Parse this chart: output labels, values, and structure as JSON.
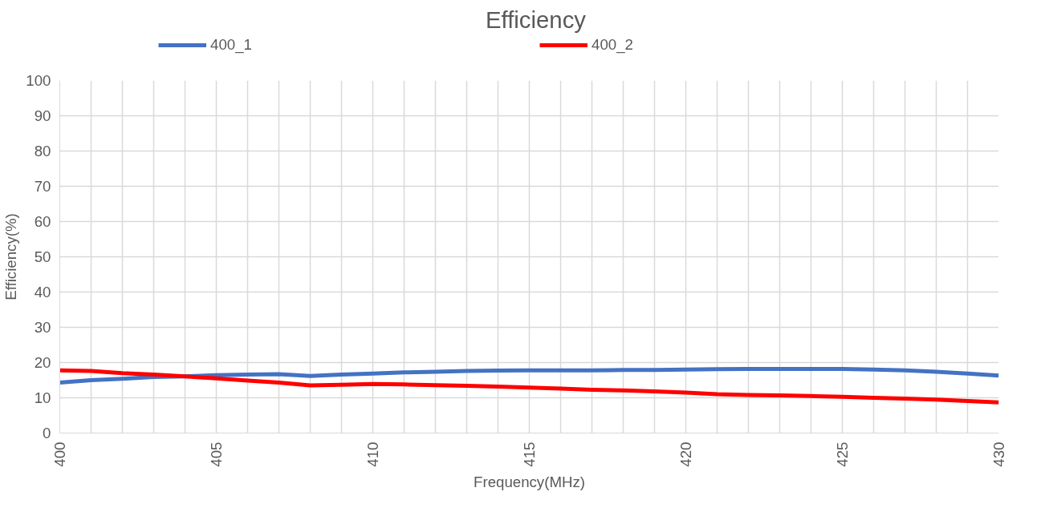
{
  "chart_data": {
    "type": "line",
    "title": "Efficiency",
    "xlabel": "Frequency(MHz)",
    "ylabel": "Efficiency(%)",
    "x": [
      400,
      401,
      402,
      403,
      404,
      405,
      406,
      407,
      408,
      409,
      410,
      411,
      412,
      413,
      414,
      415,
      416,
      417,
      418,
      419,
      420,
      421,
      422,
      423,
      424,
      425,
      426,
      427,
      428,
      429,
      430
    ],
    "series": [
      {
        "name": "400_1",
        "color": "#4472c4",
        "values": [
          14.3,
          15.0,
          15.4,
          15.9,
          16.1,
          16.4,
          16.6,
          16.7,
          16.2,
          16.6,
          16.9,
          17.2,
          17.4,
          17.6,
          17.7,
          17.8,
          17.8,
          17.8,
          17.9,
          17.9,
          18.0,
          18.1,
          18.2,
          18.2,
          18.2,
          18.2,
          18.0,
          17.8,
          17.4,
          16.9,
          16.3
        ]
      },
      {
        "name": "400_2",
        "color": "#ff0000",
        "values": [
          17.8,
          17.6,
          17.0,
          16.6,
          16.1,
          15.5,
          14.9,
          14.3,
          13.5,
          13.7,
          13.9,
          13.8,
          13.6,
          13.4,
          13.2,
          12.9,
          12.6,
          12.3,
          12.1,
          11.8,
          11.5,
          11.0,
          10.8,
          10.7,
          10.5,
          10.3,
          10.0,
          9.8,
          9.5,
          9.1,
          8.7
        ]
      }
    ],
    "xlim": [
      400,
      430
    ],
    "ylim": [
      0,
      100
    ],
    "xticks": [
      400,
      {
        "value": 401,
        "label": null
      },
      {
        "value": 402,
        "label": null
      },
      {
        "value": 403,
        "label": null
      },
      {
        "value": 404,
        "label": null
      },
      405,
      {
        "value": 406,
        "label": null
      },
      {
        "value": 407,
        "label": null
      },
      {
        "value": 408,
        "label": null
      },
      {
        "value": 409,
        "label": null
      },
      410,
      {
        "value": 411,
        "label": null
      },
      {
        "value": 412,
        "label": null
      },
      {
        "value": 413,
        "label": null
      },
      {
        "value": 414,
        "label": null
      },
      415,
      {
        "value": 416,
        "label": null
      },
      {
        "value": 417,
        "label": null
      },
      {
        "value": 418,
        "label": null
      },
      {
        "value": 419,
        "label": null
      },
      420,
      {
        "value": 421,
        "label": null
      },
      {
        "value": 422,
        "label": null
      },
      {
        "value": 423,
        "label": null
      },
      {
        "value": 424,
        "label": null
      },
      425,
      {
        "value": 426,
        "label": null
      },
      {
        "value": 427,
        "label": null
      },
      {
        "value": 428,
        "label": null
      },
      {
        "value": 429,
        "label": null
      },
      430
    ],
    "yticks": [
      0,
      10,
      20,
      30,
      40,
      50,
      60,
      70,
      80,
      90,
      100
    ],
    "grid": true,
    "legend": "top",
    "marker": "none",
    "line_style": "solid"
  }
}
